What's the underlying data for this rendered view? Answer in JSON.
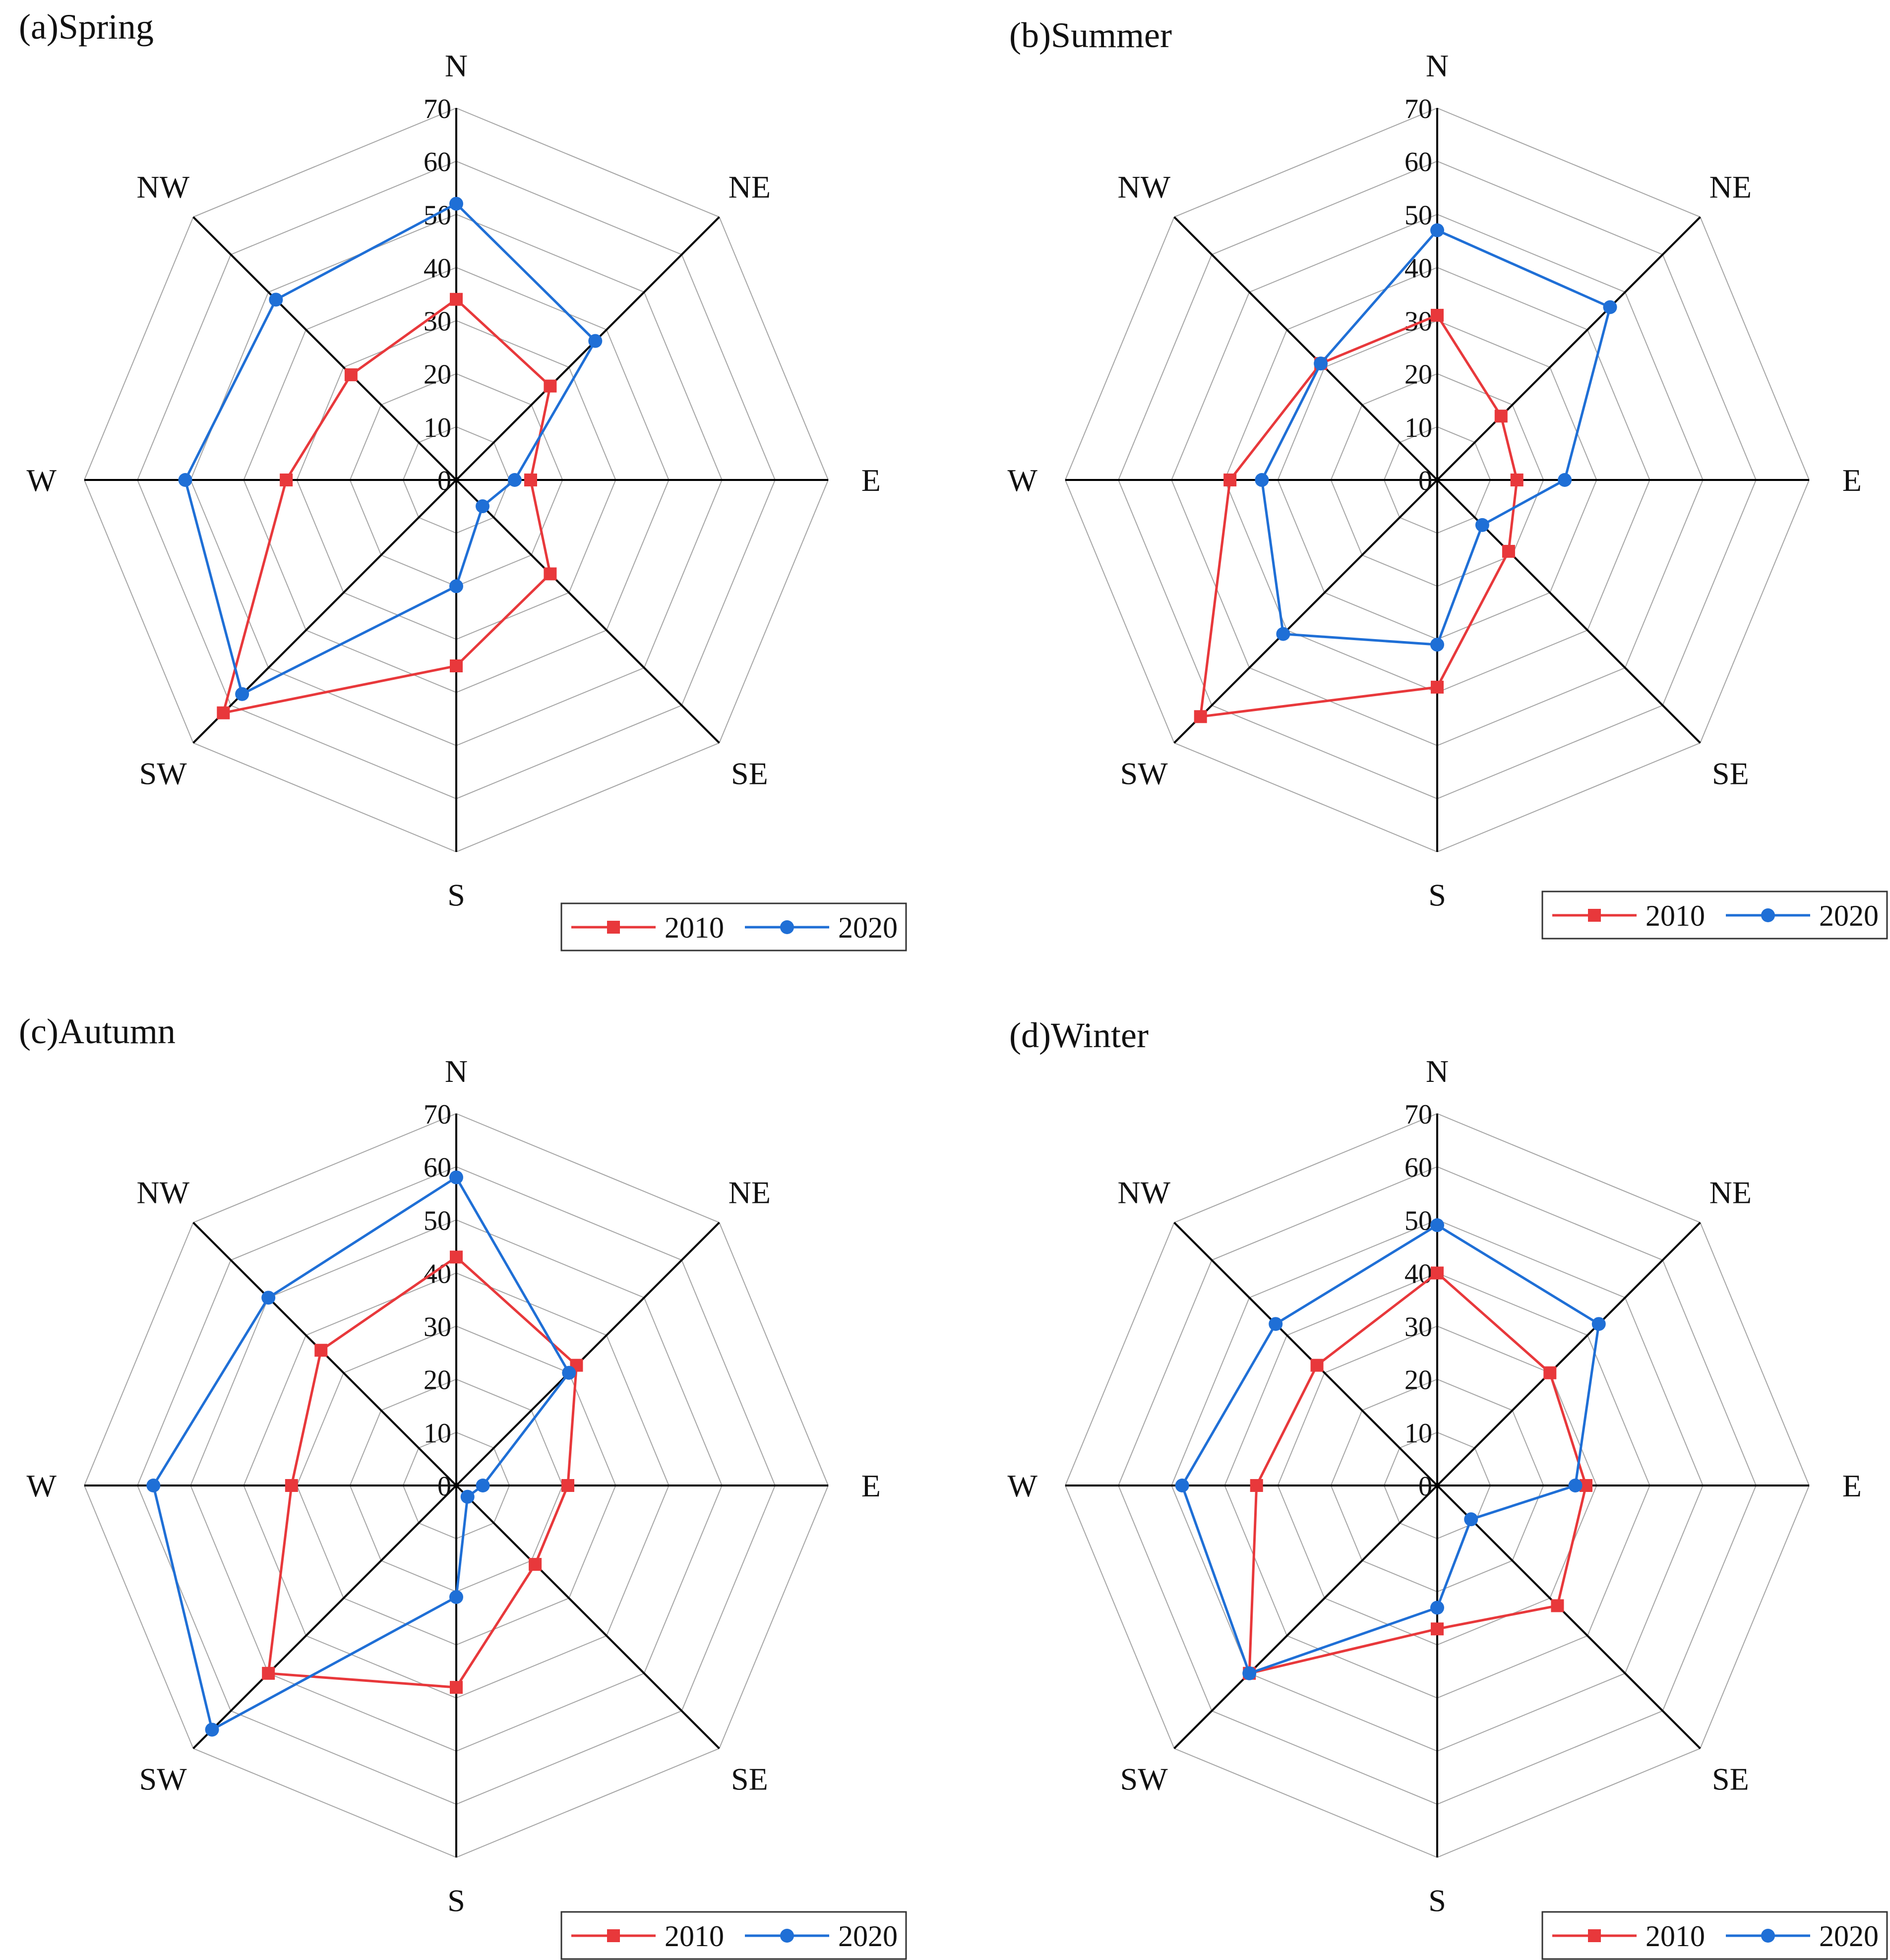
{
  "figure": {
    "directions": [
      "N",
      "NE",
      "E",
      "SE",
      "S",
      "SW",
      "W",
      "NW"
    ],
    "ticks": [
      0,
      10,
      20,
      30,
      40,
      50,
      60,
      70
    ],
    "colors": {
      "2010": "#e8383b",
      "2020": "#1f6fd6",
      "grid": "#a6a6a6",
      "axis": "#000000"
    }
  },
  "chart_data": [
    {
      "type": "radar",
      "title": "(a)Spring",
      "categories": [
        "N",
        "NE",
        "E",
        "SE",
        "S",
        "SW",
        "W",
        "NW"
      ],
      "rlim": [
        0,
        70
      ],
      "legend": "bottom-right",
      "series": [
        {
          "name": "2010",
          "marker": "square",
          "values": [
            34,
            25,
            14,
            25,
            35,
            62,
            32,
            28
          ]
        },
        {
          "name": "2020",
          "marker": "circle",
          "values": [
            52,
            37,
            11,
            7,
            20,
            57,
            51,
            48
          ]
        }
      ]
    },
    {
      "type": "radar",
      "title": "(b)Summer",
      "categories": [
        "N",
        "NE",
        "E",
        "SE",
        "S",
        "SW",
        "W",
        "NW"
      ],
      "rlim": [
        0,
        70
      ],
      "legend": "bottom-right",
      "series": [
        {
          "name": "2010",
          "marker": "square",
          "values": [
            31,
            17,
            15,
            19,
            39,
            63,
            39,
            31
          ]
        },
        {
          "name": "2020",
          "marker": "circle",
          "values": [
            47,
            46,
            24,
            12,
            31,
            41,
            33,
            31
          ]
        }
      ]
    },
    {
      "type": "radar",
      "title": "(c)Autumn",
      "categories": [
        "N",
        "NE",
        "E",
        "SE",
        "S",
        "SW",
        "W",
        "NW"
      ],
      "rlim": [
        0,
        70
      ],
      "legend": "bottom-right",
      "series": [
        {
          "name": "2010",
          "marker": "square",
          "values": [
            43,
            32,
            21,
            21,
            38,
            50,
            31,
            36
          ]
        },
        {
          "name": "2020",
          "marker": "circle",
          "values": [
            58,
            30,
            5,
            3,
            21,
            65,
            57,
            50
          ]
        }
      ]
    },
    {
      "type": "radar",
      "title": "(d)Winter",
      "categories": [
        "N",
        "NE",
        "E",
        "SE",
        "S",
        "SW",
        "W",
        "NW"
      ],
      "rlim": [
        0,
        70
      ],
      "legend": "bottom-right",
      "series": [
        {
          "name": "2010",
          "marker": "square",
          "values": [
            40,
            30,
            28,
            32,
            27,
            50,
            34,
            32
          ]
        },
        {
          "name": "2020",
          "marker": "circle",
          "values": [
            49,
            43,
            26,
            9,
            23,
            50,
            48,
            43
          ]
        }
      ]
    }
  ]
}
